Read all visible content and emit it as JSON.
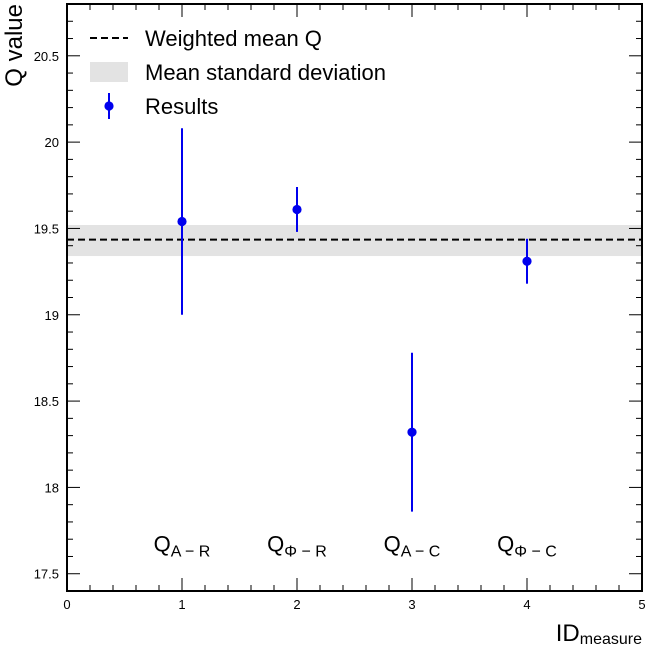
{
  "chart_data": {
    "type": "scatter",
    "xlim": [
      0,
      5
    ],
    "ylim": [
      17.4,
      20.8
    ],
    "x_ticks": [
      0,
      1,
      2,
      3,
      4,
      5
    ],
    "y_ticks": [
      17.5,
      18.0,
      18.5,
      19.0,
      19.5,
      20.0,
      20.5
    ],
    "xlabel": {
      "main": "ID",
      "sub": "measure"
    },
    "ylabel": "Q value",
    "grid": false,
    "legend_position": "top-left",
    "series": [
      {
        "name": "Results",
        "color": "#0000ee",
        "points": [
          {
            "x": 1,
            "y": 19.54,
            "yerr": 0.54
          },
          {
            "x": 2,
            "y": 19.61,
            "yerr": 0.13
          },
          {
            "x": 3,
            "y": 18.32,
            "yerr": 0.46
          },
          {
            "x": 4,
            "y": 19.31,
            "yerr": 0.13
          }
        ]
      }
    ],
    "weighted_mean": {
      "name": "Weighted mean Q",
      "value": 19.435,
      "color": "#000000",
      "style": "dashed"
    },
    "mean_std_band": {
      "name": "Mean standard deviation",
      "low": 19.34,
      "high": 19.52,
      "color": "#e3e3e3"
    },
    "annotations": [
      {
        "x": 1,
        "y": 17.63,
        "main": "Q",
        "sub": "A − R"
      },
      {
        "x": 2,
        "y": 17.63,
        "main": "Q",
        "sub": "Φ − R"
      },
      {
        "x": 3,
        "y": 17.63,
        "main": "Q",
        "sub": "A − C"
      },
      {
        "x": 4,
        "y": 17.63,
        "main": "Q",
        "sub": "Φ − C"
      }
    ]
  }
}
